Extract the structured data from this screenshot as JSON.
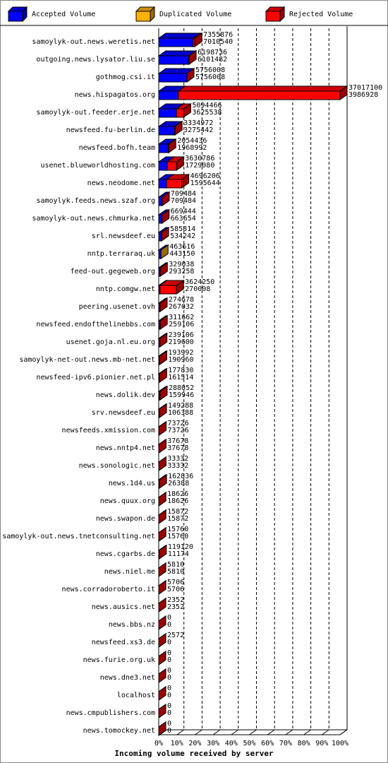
{
  "chart_data": {
    "type": "bar3d-horizontal",
    "title": "Incoming volume received by server",
    "legend": [
      {
        "name": "Accepted Volume",
        "color": "#0000ff"
      },
      {
        "name": "Duplicated Volume",
        "color": "#ffb000"
      },
      {
        "name": "Rejected Volume",
        "color": "#ff0000"
      }
    ],
    "categories": [
      "samoylyk-out.news.weretis.net",
      "outgoing.news.lysator.liu.se",
      "gothmog.csi.it",
      "news.hispagatos.org",
      "samoylyk-out.feeder.erje.net",
      "newsfeed.fu-berlin.de",
      "newsfeed.bofh.team",
      "usenet.blueworldhosting.com",
      "news.neodome.net",
      "samoylyk.feeds.news.szaf.org",
      "samoylyk-out.news.chmurka.net",
      "srl.newsdeef.eu",
      "nntp.terraraq.uk",
      "feed-out.gegeweb.org",
      "nntp.comgw.net",
      "peering.usenet.ovh",
      "newsfeed.endofthelinebbs.com",
      "usenet.goja.nl.eu.org",
      "samoylyk-net-out.news.mb-net.net",
      "newsfeed-ipv6.pionier.net.pl",
      "news.dolik.dev",
      "srv.newsdeef.eu",
      "newsfeeds.xmission.com",
      "news.nntp4.net",
      "news.sonologic.net",
      "news.1d4.us",
      "news.quux.org",
      "news.swapon.de",
      "samoylyk-out.news.tnetconsulting.net",
      "news.cgarbs.de",
      "news.niel.me",
      "news.corradoroberto.it",
      "news.ausics.net",
      "news.bbs.nz",
      "newsfeed.xs3.de",
      "news.furie.org.uk",
      "news.dne3.net",
      "localhost",
      "news.cmpublishers.com",
      "news.tomockey.net"
    ],
    "totals": [
      7355876,
      6198736,
      5756008,
      37017100,
      5094466,
      3334972,
      2054436,
      3630786,
      4696206,
      709484,
      669444,
      585814,
      463616,
      329038,
      3624250,
      274678,
      311662,
      239106,
      193992,
      177830,
      288052,
      149288,
      73726,
      37678,
      33332,
      162836,
      18626,
      15872,
      15760,
      119120,
      5810,
      5706,
      2352,
      0,
      2572,
      0,
      0,
      0,
      0,
      0
    ],
    "accepted": [
      7010540,
      6101482,
      5756008,
      3986928,
      3625538,
      3275442,
      1968992,
      1729080,
      1595644,
      709484,
      663654,
      534242,
      443150,
      293258,
      270008,
      267032,
      259106,
      219600,
      190960,
      161514,
      159946,
      106388,
      73726,
      37678,
      33332,
      26388,
      18626,
      15872,
      15760,
      11174,
      5810,
      5706,
      2352,
      0,
      0,
      0,
      0,
      0,
      0,
      0
    ],
    "excess_legend_index": [
      2,
      2,
      2,
      2,
      2,
      2,
      2,
      2,
      2,
      2,
      2,
      2,
      1,
      2,
      2,
      2,
      2,
      2,
      2,
      2,
      2,
      2,
      2,
      2,
      2,
      2,
      2,
      2,
      2,
      2,
      2,
      2,
      2,
      2,
      2,
      2,
      2,
      2,
      2,
      2
    ],
    "xlim": [
      0,
      37017100
    ],
    "xticks": [
      {
        "value": 0,
        "label": "0%"
      },
      {
        "value": 3701710,
        "label": "10%"
      },
      {
        "value": 7403420,
        "label": "20%"
      },
      {
        "value": 11105130,
        "label": "30%"
      },
      {
        "value": 14806840,
        "label": "40%"
      },
      {
        "value": 18508550,
        "label": "50%"
      },
      {
        "value": 22210260,
        "label": "60%"
      },
      {
        "value": 25911970,
        "label": "70%"
      },
      {
        "value": 29613680,
        "label": "80%"
      },
      {
        "value": 33315390,
        "label": "90%"
      },
      {
        "value": 37017100,
        "label": "100%"
      }
    ],
    "grid": true
  }
}
